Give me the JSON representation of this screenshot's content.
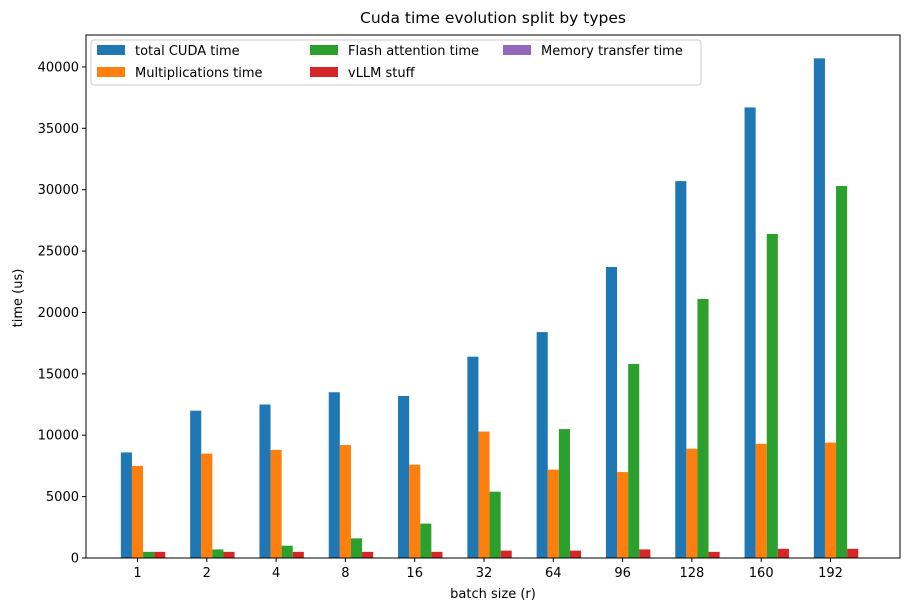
{
  "chart_data": {
    "type": "bar",
    "title": "Cuda time evolution split by types",
    "xlabel": "batch size (r)",
    "ylabel": "time (us)",
    "categories": [
      "1",
      "2",
      "4",
      "8",
      "16",
      "32",
      "64",
      "96",
      "128",
      "160",
      "192"
    ],
    "ylim": [
      0,
      42600
    ],
    "yticks": [
      0,
      5000,
      10000,
      15000,
      20000,
      25000,
      30000,
      35000,
      40000
    ],
    "grid": false,
    "legend_position": "top-left",
    "series": [
      {
        "name": "total CUDA time",
        "color": "#1f77b4",
        "values": [
          8600,
          12000,
          12500,
          13500,
          13200,
          16400,
          18400,
          23700,
          30700,
          36700,
          40700
        ]
      },
      {
        "name": "Multiplications time",
        "color": "#ff7f0e",
        "values": [
          7500,
          8500,
          8800,
          9200,
          7600,
          10300,
          7200,
          7000,
          8900,
          9300,
          9400
        ]
      },
      {
        "name": "Flash attention time",
        "color": "#2ca02c",
        "values": [
          500,
          700,
          1000,
          1600,
          2800,
          5400,
          10500,
          15800,
          21100,
          26400,
          30300
        ]
      },
      {
        "name": "vLLM stuff",
        "color": "#d62728",
        "values": [
          500,
          500,
          500,
          500,
          500,
          600,
          600,
          700,
          500,
          750,
          750
        ]
      },
      {
        "name": "Memory transfer time",
        "color": "#9467bd",
        "values": [
          0,
          0,
          0,
          0,
          0,
          0,
          0,
          0,
          0,
          0,
          0
        ]
      }
    ]
  }
}
